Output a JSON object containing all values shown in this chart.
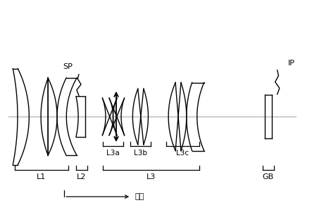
{
  "figsize": [
    4.43,
    3.19
  ],
  "dpi": 100,
  "bg_color": "#ffffff",
  "lens_color": "#000000",
  "axis_color": "#aaaaaa",
  "sp_label": "SP",
  "ip_label": "IP",
  "l1_label": "L1",
  "l2_label": "L2",
  "l3_label": "L3",
  "l3a_label": "L3a",
  "l3b_label": "L3b",
  "l3c_label": "L3c",
  "gb_label": "GB",
  "focus_label": "聚焦",
  "font_size": 8,
  "small_font_size": 7.5,
  "xlim": [
    0,
    10
  ],
  "ylim": [
    -3.2,
    3.5
  ]
}
